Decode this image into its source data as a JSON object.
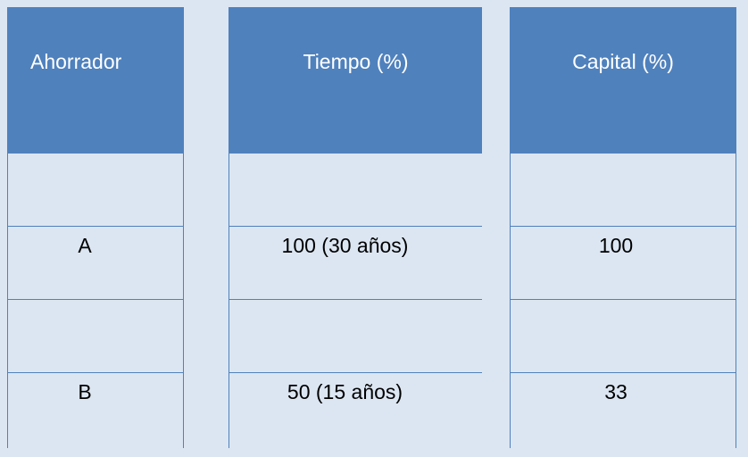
{
  "table": {
    "headers": [
      "Ahorrador",
      "Tiempo (%)",
      "Capital (%)"
    ],
    "rows": [
      [
        "",
        "",
        ""
      ],
      [
        "A",
        "100 (30 años)",
        "100"
      ],
      [
        "",
        "",
        ""
      ],
      [
        "B",
        "50 (15 años)",
        "33"
      ]
    ]
  },
  "colors": {
    "header": "#4f81bd",
    "cell": "#dce6f2",
    "border": "#4f81bd"
  }
}
